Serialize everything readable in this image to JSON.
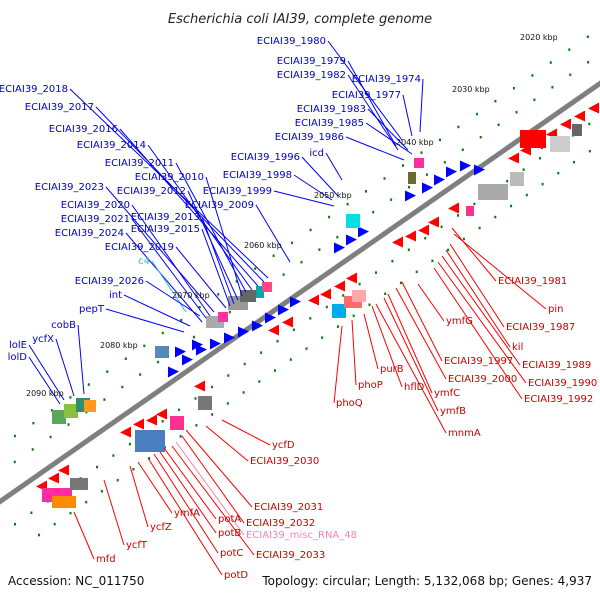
{
  "title": "Escherichia coli IAI39, complete genome",
  "footer": {
    "accession": "Accession: NC_011750",
    "summary": "Topology: circular; Length: 5,132,068 bp; Genes: 4,937"
  },
  "colors": {
    "forward_gene": "#0000ff",
    "reverse_gene": "#ff0000",
    "backbone": "#7f7f7f",
    "tick": "#008000",
    "misc_rna": "#ff7fb4"
  },
  "kbp_ticks": [
    "2020 kbp",
    "2030 kbp",
    "2040 kbp",
    "2050 kbp",
    "2060 kbp",
    "2070 kbp",
    "2080 kbp",
    "2090 kbp"
  ],
  "upper_labels": [
    "ECIAI39_1980",
    "ECIAI39_1979",
    "ECIAI39_1982",
    "ECIAI39_1974",
    "ECIAI39_1977",
    "ECIAI39_1983",
    "ECIAI39_1985",
    "ECIAI39_1986",
    "icd",
    "ECIAI39_1996",
    "ECIAI39_1998",
    "ECIAI39_1999",
    "ECIAI39_2009",
    "ECIAI39_2018",
    "ECIAI39_2017",
    "ECIAI39_2016",
    "ECIAI39_2014",
    "ECIAI39_2011",
    "ECIAI39_2010",
    "ECIAI39_2012",
    "ECIAI39_2023",
    "ECIAI39_2020",
    "ECIAI39_2013",
    "ECIAI39_2021",
    "ECIAI39_2015",
    "ECIAI39_2024",
    "ECIAI39_2019",
    "c4",
    "ECIAI39_2026",
    "int",
    "pepT",
    "cobB",
    "ycfX",
    "lolE",
    "lolD"
  ],
  "lower_labels": [
    "ECIAI39_1981",
    "pin",
    "ymfG",
    "ECIAI39_1987",
    "kil",
    "ECIAI39_1989",
    "ECIAI39_1990",
    "ECIAI39_1992",
    "ECIAI39_1997",
    "ECIAI39_2000",
    "purB",
    "ymfC",
    "hflD",
    "phoP",
    "ymfB",
    "phoQ",
    "mnmA",
    "ycfD",
    "ECIAI39_2030",
    "ECIAI39_2031",
    "ECIAI39_2032",
    "ECIAI39_misc_RNA_48",
    "ECIAI39_2033",
    "potA",
    "potB",
    "potC",
    "potD",
    "ymfA",
    "ycfZ",
    "ycfT",
    "mfd"
  ]
}
